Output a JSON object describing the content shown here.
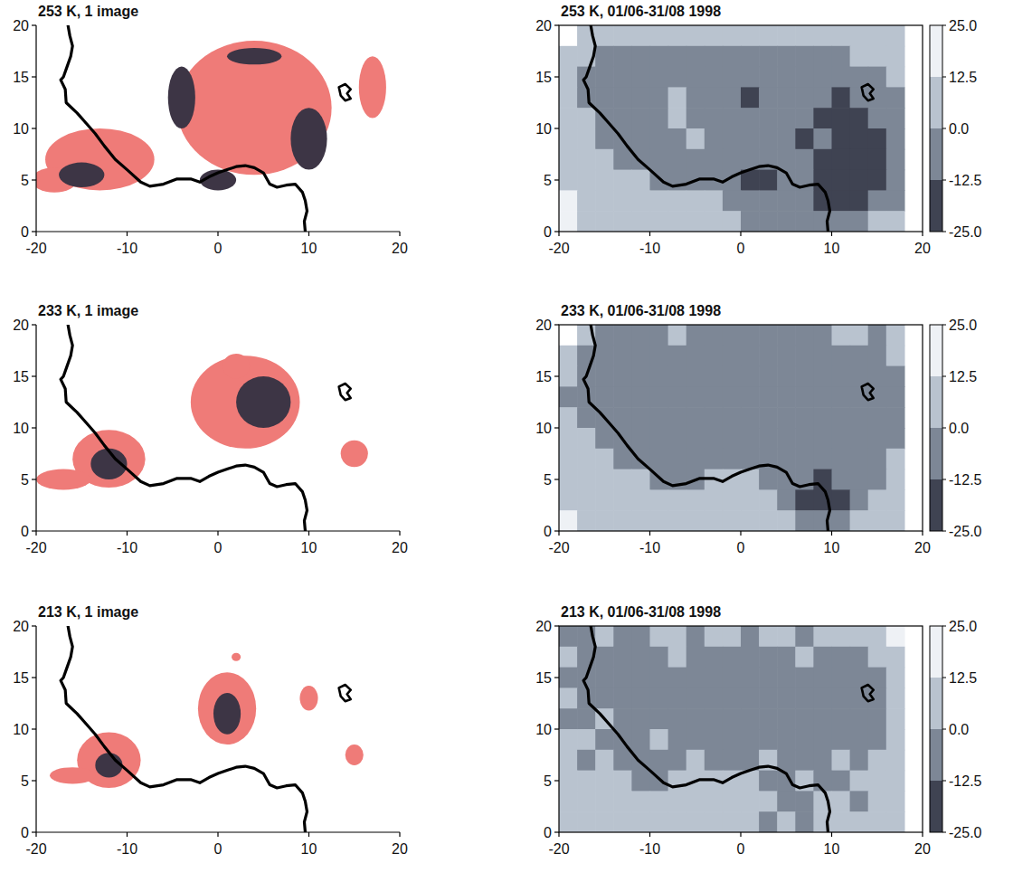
{
  "chart_data": [
    {
      "type": "map",
      "title": "253 K, 1 image",
      "xlim": [
        -20,
        20
      ],
      "ylim": [
        0,
        20
      ],
      "xticks": [
        -20,
        -10,
        0,
        10,
        20
      ],
      "yticks": [
        0,
        5,
        10,
        15,
        20
      ],
      "regions": {
        "color": "#ef7b78",
        "lon": [
          4,
          -13,
          17,
          -18
        ],
        "lat": [
          12,
          7,
          14,
          5
        ],
        "rx": [
          8.5,
          6,
          1.5,
          2.5
        ],
        "ry": [
          6.5,
          3,
          3,
          1.2
        ]
      },
      "cores": {
        "color": "#3d3545",
        "lon": [
          -4,
          10,
          -15,
          0,
          4
        ],
        "lat": [
          13,
          9,
          5.5,
          5,
          17
        ],
        "rx": [
          1.5,
          2,
          2.5,
          2,
          3
        ],
        "ry": [
          3,
          3,
          1.2,
          1,
          0.8
        ]
      }
    },
    {
      "type": "heatmap",
      "title": "253 K, 01/06-31/08 1998",
      "xlim": [
        -20,
        20
      ],
      "ylim": [
        0,
        20
      ],
      "xticks": [
        -20,
        -10,
        0,
        10,
        20
      ],
      "yticks": [
        0,
        5,
        10,
        15,
        20
      ],
      "lon_edges": [
        -20,
        -18,
        -16,
        -14,
        -12,
        -10,
        -8,
        -6,
        -4,
        -2,
        0,
        2,
        4,
        6,
        8,
        10,
        12,
        14,
        16,
        18,
        20
      ],
      "lat_edges": [
        20,
        18,
        16,
        14,
        12,
        10,
        8,
        6,
        4,
        2,
        0
      ],
      "cells": [
        [
          null,
          5,
          5,
          6,
          4,
          5,
          3,
          4,
          5,
          6,
          4,
          5,
          3,
          4,
          5,
          6,
          5,
          4,
          6,
          null
        ],
        [
          6,
          4,
          -3,
          -5,
          -6,
          -4,
          -7,
          -5,
          -6,
          -8,
          -6,
          -5,
          -7,
          -6,
          -4,
          -5,
          3,
          5,
          6,
          null
        ],
        [
          5,
          -4,
          -6,
          -8,
          -10,
          -7,
          -6,
          -9,
          -8,
          -7,
          -11,
          -9,
          -8,
          -10,
          -9,
          -8,
          -6,
          -4,
          4,
          null
        ],
        [
          4,
          -5,
          -8,
          -9,
          -7,
          -5,
          3,
          -6,
          -9,
          -11,
          -14,
          -10,
          -8,
          -9,
          -11,
          -13,
          -10,
          -8,
          -5,
          null
        ],
        [
          5,
          6,
          -6,
          -8,
          -10,
          -7,
          4,
          -5,
          -8,
          -10,
          -9,
          -8,
          -10,
          -12,
          -14,
          -16,
          -13,
          -10,
          -6,
          null
        ],
        [
          6,
          5,
          -4,
          -7,
          -9,
          -8,
          -5,
          3,
          -6,
          -8,
          -10,
          -9,
          -11,
          -13,
          -12,
          -15,
          -17,
          -14,
          -8,
          null
        ],
        [
          7,
          6,
          5,
          -5,
          -8,
          -9,
          -7,
          -6,
          -8,
          -9,
          -12,
          -10,
          -9,
          -11,
          -13,
          -16,
          -18,
          -15,
          -9,
          null
        ],
        [
          8,
          7,
          6,
          5,
          4,
          -5,
          -6,
          -8,
          -9,
          -11,
          -16,
          -17,
          -10,
          -12,
          -15,
          -18,
          -19,
          -13,
          -7,
          null
        ],
        [
          13,
          9,
          8,
          7,
          6,
          5,
          4,
          6,
          5,
          -6,
          -9,
          -8,
          -10,
          -12,
          -16,
          -18,
          -17,
          -10,
          -5,
          null
        ],
        [
          14,
          12,
          9,
          8,
          7,
          6,
          5,
          6,
          4,
          5,
          -5,
          -7,
          -8,
          -9,
          -7,
          -6,
          -5,
          4,
          5,
          null
        ]
      ],
      "colorbar": {
        "range": [
          -25,
          25
        ],
        "colors": [
          "#eef1f5",
          "#b9c3cf",
          "#7d8796",
          "#3f4352"
        ],
        "ticks": [
          {
            "value": 25,
            "label": "25.0"
          },
          {
            "value": 12.5,
            "label": "12.5"
          },
          {
            "value": 0,
            "label": "0.0"
          },
          {
            "value": -12.5,
            "label": "-12.5"
          },
          {
            "value": -25,
            "label": "-25.0"
          }
        ]
      }
    },
    {
      "type": "map",
      "title": "233 K, 1 image",
      "xlim": [
        -20,
        20
      ],
      "ylim": [
        0,
        20
      ],
      "xticks": [
        -20,
        -10,
        0,
        10,
        20
      ],
      "yticks": [
        0,
        5,
        10,
        15,
        20
      ],
      "regions": {
        "color": "#ef7b78",
        "lon": [
          3,
          -12,
          -17,
          15,
          2
        ],
        "lat": [
          12.5,
          7,
          5,
          7.5,
          16
        ],
        "rx": [
          6,
          4,
          3,
          1.5,
          1.5
        ],
        "ry": [
          4.5,
          2.8,
          1,
          1.3,
          1.2
        ]
      },
      "cores": {
        "color": "#3d3545",
        "lon": [
          5,
          -12
        ],
        "lat": [
          12.5,
          6.5
        ],
        "rx": [
          3,
          2
        ],
        "ry": [
          2.5,
          1.5
        ]
      }
    },
    {
      "type": "heatmap",
      "title": "233 K, 01/06-31/08 1998",
      "xlim": [
        -20,
        20
      ],
      "ylim": [
        0,
        20
      ],
      "xticks": [
        -20,
        -10,
        0,
        10,
        20
      ],
      "yticks": [
        0,
        5,
        10,
        15,
        20
      ],
      "lon_edges": [
        -20,
        -18,
        -16,
        -14,
        -12,
        -10,
        -8,
        -6,
        -4,
        -2,
        0,
        2,
        4,
        6,
        8,
        10,
        12,
        14,
        16,
        18,
        20
      ],
      "lat_edges": [
        20,
        18,
        16,
        14,
        12,
        10,
        8,
        6,
        4,
        2,
        0
      ],
      "cells": [
        [
          null,
          4,
          -3,
          -4,
          -5,
          -3,
          4,
          -4,
          -5,
          -3,
          -4,
          -5,
          -4,
          -3,
          -4,
          5,
          4,
          -3,
          4,
          null
        ],
        [
          5,
          -4,
          -5,
          -6,
          -5,
          -4,
          -6,
          -5,
          -4,
          -6,
          -5,
          -7,
          -6,
          -5,
          -6,
          -5,
          -4,
          -5,
          5,
          null
        ],
        [
          4,
          -5,
          -6,
          -5,
          -7,
          -6,
          -5,
          -4,
          -6,
          -5,
          -8,
          -6,
          -7,
          -6,
          -5,
          -7,
          -6,
          -5,
          -4,
          null
        ],
        [
          -4,
          -6,
          -5,
          -7,
          -6,
          -5,
          -6,
          -7,
          -5,
          -6,
          -7,
          -8,
          -6,
          -9,
          -7,
          -6,
          -5,
          -6,
          -4,
          null
        ],
        [
          4,
          -5,
          -6,
          -8,
          -7,
          -6,
          -5,
          -6,
          -7,
          -8,
          -6,
          -7,
          -8,
          -7,
          -9,
          -8,
          -7,
          -6,
          -5,
          null
        ],
        [
          5,
          4,
          -5,
          -6,
          -7,
          -5,
          -6,
          -5,
          -6,
          -7,
          -8,
          -6,
          -7,
          -8,
          -7,
          -9,
          -8,
          -7,
          -5,
          null
        ],
        [
          6,
          5,
          4,
          -4,
          -6,
          -7,
          -5,
          -6,
          -5,
          -6,
          -7,
          -5,
          -6,
          -7,
          -8,
          -7,
          -6,
          -5,
          4,
          null
        ],
        [
          7,
          6,
          5,
          4,
          5,
          -4,
          -5,
          -4,
          3,
          4,
          5,
          -6,
          -8,
          -10,
          -13,
          -11,
          -8,
          -6,
          5,
          null
        ],
        [
          8,
          7,
          6,
          5,
          4,
          5,
          6,
          5,
          4,
          3,
          5,
          4,
          -7,
          -14,
          -15,
          -13,
          -9,
          5,
          6,
          null
        ],
        [
          13,
          9,
          8,
          7,
          6,
          5,
          6,
          7,
          5,
          4,
          6,
          5,
          4,
          -6,
          -7,
          -5,
          5,
          6,
          7,
          null
        ]
      ],
      "colorbar": {
        "range": [
          -25,
          25
        ],
        "colors": [
          "#eef1f5",
          "#b9c3cf",
          "#7d8796",
          "#3f4352"
        ],
        "ticks": [
          {
            "value": 25,
            "label": "25.0"
          },
          {
            "value": 12.5,
            "label": "12.5"
          },
          {
            "value": 0,
            "label": "0.0"
          },
          {
            "value": -12.5,
            "label": "-12.5"
          },
          {
            "value": -25,
            "label": "-25.0"
          }
        ]
      }
    },
    {
      "type": "map",
      "title": "213 K, 1 image",
      "xlim": [
        -20,
        20
      ],
      "ylim": [
        0,
        20
      ],
      "xticks": [
        -20,
        -10,
        0,
        10,
        20
      ],
      "yticks": [
        0,
        5,
        10,
        15,
        20
      ],
      "regions": {
        "color": "#ef7b78",
        "lon": [
          -12,
          -16,
          1,
          10,
          15,
          2
        ],
        "lat": [
          7,
          5.5,
          12,
          13,
          7.5,
          17
        ],
        "rx": [
          3.5,
          2.5,
          3.2,
          1,
          1,
          0.5
        ],
        "ry": [
          2.7,
          0.8,
          3.5,
          1.2,
          1,
          0.4
        ]
      },
      "cores": {
        "color": "#3d3545",
        "lon": [
          -12,
          1
        ],
        "lat": [
          6.5,
          11.5
        ],
        "rx": [
          1.5,
          1.5
        ],
        "ry": [
          1.2,
          2
        ]
      }
    },
    {
      "type": "heatmap",
      "title": "213 K, 01/06-31/08 1998",
      "xlim": [
        -20,
        20
      ],
      "ylim": [
        0,
        20
      ],
      "xticks": [
        -20,
        -10,
        0,
        10,
        20
      ],
      "yticks": [
        0,
        5,
        10,
        15,
        20
      ],
      "lon_edges": [
        -20,
        -18,
        -16,
        -14,
        -12,
        -10,
        -8,
        -6,
        -4,
        -2,
        0,
        2,
        4,
        6,
        8,
        10,
        12,
        14,
        16,
        18,
        20
      ],
      "lat_edges": [
        20,
        18,
        16,
        14,
        12,
        10,
        8,
        6,
        4,
        2,
        0
      ],
      "cells": [
        [
          -3,
          -4,
          4,
          -3,
          -4,
          5,
          4,
          -4,
          5,
          4,
          -5,
          4,
          5,
          -3,
          4,
          5,
          4,
          5,
          13,
          null
        ],
        [
          4,
          -5,
          -4,
          -5,
          -6,
          -4,
          5,
          -5,
          -6,
          -5,
          -4,
          -6,
          -5,
          4,
          -5,
          -6,
          -4,
          5,
          6,
          null
        ],
        [
          -4,
          -6,
          -5,
          -4,
          -6,
          -5,
          -4,
          -6,
          -5,
          -7,
          -6,
          -5,
          -4,
          -6,
          -5,
          -7,
          -6,
          -5,
          5,
          null
        ],
        [
          5,
          -4,
          -6,
          -5,
          -7,
          -6,
          -5,
          -4,
          -6,
          -5,
          -7,
          -6,
          -5,
          -7,
          -6,
          -5,
          -8,
          -6,
          4,
          null
        ],
        [
          -4,
          -5,
          4,
          -6,
          -5,
          -4,
          -6,
          -5,
          -7,
          -6,
          -5,
          -4,
          -6,
          -5,
          -7,
          -6,
          -5,
          -4,
          5,
          null
        ],
        [
          5,
          4,
          -5,
          -6,
          -4,
          5,
          -5,
          -6,
          -5,
          -4,
          -6,
          -5,
          -7,
          -6,
          -5,
          -4,
          -6,
          -5,
          4,
          null
        ],
        [
          6,
          -4,
          5,
          -5,
          -6,
          -5,
          -4,
          5,
          -5,
          -6,
          -4,
          5,
          -6,
          -5,
          -4,
          5,
          -5,
          4,
          5,
          null
        ],
        [
          5,
          6,
          4,
          5,
          -4,
          -5,
          4,
          5,
          6,
          4,
          5,
          -4,
          -5,
          4,
          -6,
          -5,
          4,
          5,
          6,
          null
        ],
        [
          7,
          6,
          5,
          4,
          5,
          6,
          5,
          4,
          5,
          6,
          4,
          5,
          -6,
          -5,
          5,
          4,
          -5,
          6,
          7,
          null
        ],
        [
          8,
          7,
          6,
          5,
          6,
          5,
          7,
          6,
          5,
          4,
          5,
          -6,
          5,
          -5,
          4,
          5,
          6,
          7,
          8,
          null
        ]
      ],
      "colorbar": {
        "range": [
          -25,
          25
        ],
        "colors": [
          "#eef1f5",
          "#b9c3cf",
          "#7d8796",
          "#3f4352"
        ],
        "ticks": [
          {
            "value": 25,
            "label": "25.0"
          },
          {
            "value": 12.5,
            "label": "12.5"
          },
          {
            "value": 0,
            "label": "0.0"
          },
          {
            "value": -12.5,
            "label": "-12.5"
          },
          {
            "value": -25,
            "label": "-25.0"
          }
        ]
      }
    }
  ],
  "coastline": {
    "lon": [
      -16.5,
      -16.3,
      -16.0,
      -16.2,
      -16.6,
      -17.0,
      -17.3,
      -16.8,
      -16.7,
      -15.5,
      -14.5,
      -13.5,
      -12.5,
      -11.3,
      -10,
      -8.5,
      -7.5,
      -6,
      -4.5,
      -3,
      -2,
      -1,
      0,
      1,
      2,
      3,
      4,
      5,
      5.7,
      6.5,
      7.5,
      8.5,
      9.3,
      9.6,
      9.8,
      9.5,
      9.6
    ],
    "lat": [
      20,
      19,
      18,
      17,
      16,
      15,
      14.7,
      13.8,
      12.5,
      11.5,
      10.5,
      9.5,
      8.3,
      7,
      6,
      4.8,
      4.4,
      4.6,
      5.1,
      5.1,
      4.8,
      5.3,
      5.7,
      6,
      6.3,
      6.4,
      6.2,
      5.7,
      4.6,
      4.3,
      4.5,
      4.6,
      3.8,
      3,
      2,
      1,
      0
    ]
  },
  "lake_chad": {
    "lon": [
      13.5,
      13.3,
      14,
      14.6,
      14.2,
      14.6,
      14,
      13.5
    ],
    "lat": [
      13.2,
      14,
      14.3,
      13.8,
      13.4,
      12.9,
      12.7,
      13.2
    ]
  }
}
